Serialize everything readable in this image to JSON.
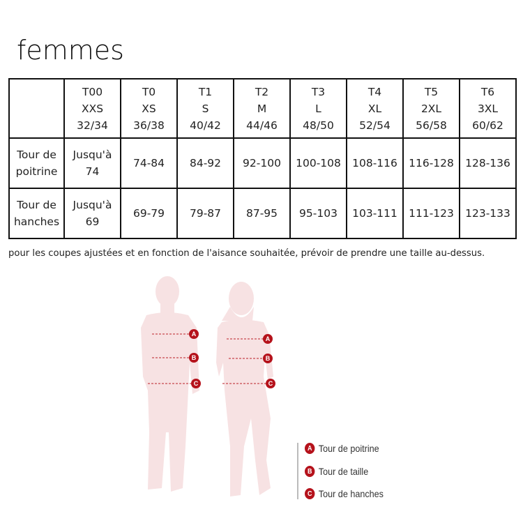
{
  "title": "femmes",
  "table": {
    "header": [
      {
        "code": "T00",
        "size": "XXS",
        "fr": "32/34"
      },
      {
        "code": "T0",
        "size": "XS",
        "fr": "36/38"
      },
      {
        "code": "T1",
        "size": "S",
        "fr": "40/42"
      },
      {
        "code": "T2",
        "size": "M",
        "fr": "44/46"
      },
      {
        "code": "T3",
        "size": "L",
        "fr": "48/50"
      },
      {
        "code": "T4",
        "size": "XL",
        "fr": "52/54"
      },
      {
        "code": "T5",
        "size": "2XL",
        "fr": "56/58"
      },
      {
        "code": "T6",
        "size": "3XL",
        "fr": "60/62"
      }
    ],
    "rows": [
      {
        "label1": "Tour de",
        "label2": "poitrine",
        "first1": "Jusqu'à",
        "first2": "74",
        "values": [
          "74-84",
          "84-92",
          "92-100",
          "100-108",
          "108-116",
          "116-128",
          "128-136"
        ]
      },
      {
        "label1": "Tour de",
        "label2": "hanches",
        "first1": "Jusqu'à",
        "first2": "69",
        "values": [
          "69-79",
          "79-87",
          "87-95",
          "95-103",
          "103-111",
          "111-123",
          "123-133"
        ]
      }
    ]
  },
  "note": "pour les coupes ajustées et en fonction de l'aisance souhaitée, prévoir de prendre une taille au-dessus.",
  "legend": [
    {
      "letter": "A",
      "label": "Tour de poitrine"
    },
    {
      "letter": "B",
      "label": "Tour de taille"
    },
    {
      "letter": "C",
      "label": "Tour de hanches"
    }
  ],
  "colors": {
    "accent": "#b5121b",
    "silhouette": "#f7e2e3"
  }
}
